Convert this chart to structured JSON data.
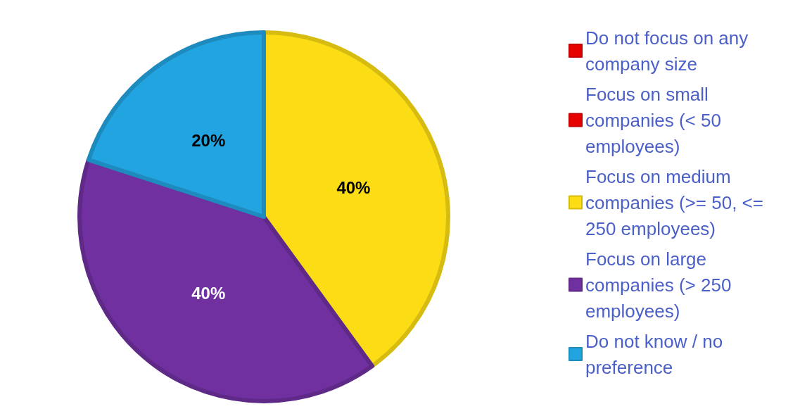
{
  "chart_data": {
    "type": "pie",
    "categories": [
      "Do not focus on any company size",
      "Focus on small companies (< 50 employees)",
      "Focus on medium companies (>= 50, <= 250 employees)",
      "Focus on large companies (> 250 employees)",
      "Do not know / no preference"
    ],
    "values": [
      0,
      0,
      40,
      40,
      20
    ],
    "colors": [
      "#e60000",
      "#e60000",
      "#fcdc14",
      "#7030a0",
      "#22a4e0"
    ],
    "value_labels": [
      null,
      null,
      "40%",
      "40%",
      "20%"
    ],
    "legend": "right"
  }
}
